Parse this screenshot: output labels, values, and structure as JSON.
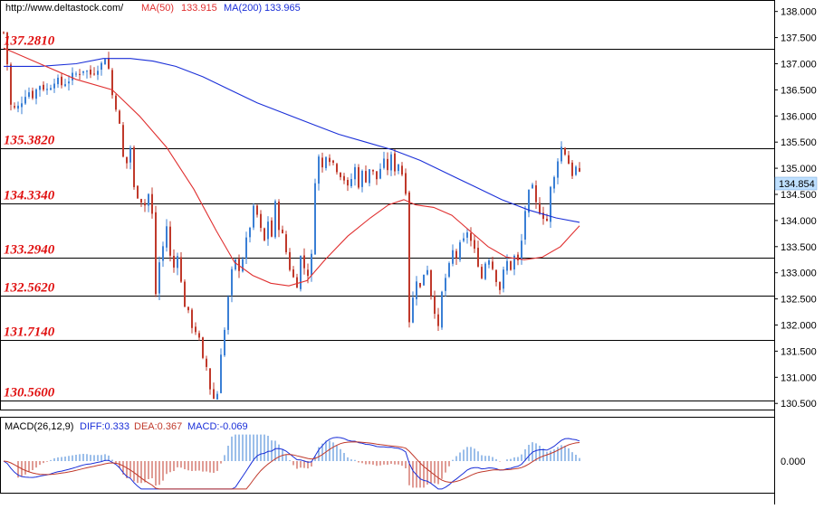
{
  "header": {
    "url": "http://www.deltastock.com/",
    "ma50_label": "MA(50)",
    "ma50_value": "133.915",
    "ma200_label": "MA(200)",
    "ma200_value": "133.965"
  },
  "macd_header": {
    "name": "MACD(26,12,9)",
    "diff_label": "DIFF:0.333",
    "dea_label": "DEA:0.367",
    "macd_label": "MACD:-0.069"
  },
  "colors": {
    "up": "#3a7fd5",
    "down": "#c0392b",
    "ma50": "#e03030",
    "ma200": "#1a2fd8",
    "level_label": "#e01010",
    "price_tag": "#bfe0ff"
  },
  "chart_data": {
    "type": "candlestick",
    "price_axis": {
      "ylim": [
        130.4,
        138.15
      ],
      "ticks": [
        "138.000",
        "137.500",
        "137.000",
        "136.500",
        "136.000",
        "135.500",
        "135.000",
        "134.500",
        "134.000",
        "133.500",
        "133.000",
        "132.500",
        "132.000",
        "131.500",
        "131.000",
        "130.500"
      ]
    },
    "last_price": "134.854",
    "levels": [
      {
        "value": 137.281,
        "label": "137.2810"
      },
      {
        "value": 135.382,
        "label": "135.3820"
      },
      {
        "value": 134.334,
        "label": "134.3340"
      },
      {
        "value": 133.294,
        "label": "133.2940"
      },
      {
        "value": 132.562,
        "label": "132.5620"
      },
      {
        "value": 131.714,
        "label": "131.7140"
      },
      {
        "value": 130.56,
        "label": "130.5600"
      }
    ],
    "close_path": [
      [
        0,
        137.6
      ],
      [
        4,
        137.0
      ],
      [
        8,
        136.2
      ],
      [
        14,
        136.1
      ],
      [
        20,
        136.3
      ],
      [
        26,
        136.5
      ],
      [
        32,
        136.4
      ],
      [
        40,
        136.6
      ],
      [
        48,
        136.5
      ],
      [
        56,
        136.7
      ],
      [
        64,
        136.6
      ],
      [
        72,
        136.7
      ],
      [
        80,
        136.8
      ],
      [
        88,
        136.9
      ],
      [
        96,
        136.8
      ],
      [
        104,
        136.95
      ],
      [
        110,
        137.0
      ],
      [
        114,
        137.3
      ],
      [
        118,
        136.5
      ],
      [
        124,
        136.2
      ],
      [
        128,
        135.8
      ],
      [
        132,
        135.2
      ],
      [
        136,
        135.1
      ],
      [
        140,
        135.4
      ],
      [
        144,
        134.6
      ],
      [
        148,
        134.5
      ],
      [
        152,
        134.4
      ],
      [
        156,
        134.3
      ],
      [
        160,
        134.5
      ],
      [
        164,
        134.1
      ],
      [
        168,
        132.6
      ],
      [
        172,
        133.2
      ],
      [
        176,
        133.5
      ],
      [
        180,
        133.9
      ],
      [
        184,
        133.3
      ],
      [
        188,
        133.1
      ],
      [
        192,
        133.4
      ],
      [
        196,
        132.8
      ],
      [
        200,
        132.4
      ],
      [
        204,
        132.2
      ],
      [
        208,
        132.0
      ],
      [
        212,
        131.9
      ],
      [
        216,
        131.7
      ],
      [
        220,
        131.3
      ],
      [
        224,
        131.2
      ],
      [
        228,
        130.8
      ],
      [
        232,
        130.6
      ],
      [
        236,
        130.7
      ],
      [
        240,
        131.5
      ],
      [
        244,
        131.9
      ],
      [
        248,
        132.5
      ],
      [
        252,
        133.0
      ],
      [
        256,
        133.2
      ],
      [
        260,
        133.1
      ],
      [
        264,
        133.3
      ],
      [
        268,
        133.6
      ],
      [
        272,
        133.9
      ],
      [
        276,
        134.2
      ],
      [
        280,
        134.1
      ],
      [
        284,
        133.8
      ],
      [
        288,
        133.6
      ],
      [
        292,
        134.0
      ],
      [
        296,
        133.7
      ],
      [
        300,
        134.3
      ],
      [
        304,
        133.9
      ],
      [
        308,
        133.7
      ],
      [
        312,
        133.4
      ],
      [
        316,
        133.1
      ],
      [
        320,
        132.9
      ],
      [
        324,
        132.8
      ],
      [
        328,
        133.3
      ],
      [
        332,
        133.1
      ],
      [
        336,
        133.0
      ],
      [
        340,
        133.3
      ],
      [
        344,
        134.8
      ],
      [
        348,
        135.2
      ],
      [
        352,
        135.0
      ],
      [
        356,
        135.3
      ],
      [
        360,
        135.2
      ],
      [
        364,
        135.1
      ],
      [
        368,
        135.0
      ],
      [
        372,
        134.9
      ],
      [
        376,
        134.8
      ],
      [
        380,
        134.6
      ],
      [
        384,
        134.8
      ],
      [
        388,
        135.0
      ],
      [
        392,
        134.7
      ],
      [
        396,
        134.9
      ],
      [
        400,
        134.8
      ],
      [
        404,
        135.0
      ],
      [
        408,
        134.9
      ],
      [
        412,
        134.8
      ],
      [
        416,
        135.0
      ],
      [
        420,
        135.1
      ],
      [
        424,
        135.0
      ],
      [
        428,
        135.2
      ],
      [
        432,
        135.0
      ],
      [
        436,
        135.1
      ],
      [
        440,
        134.9
      ],
      [
        444,
        134.6
      ],
      [
        448,
        132.1
      ],
      [
        452,
        132.5
      ],
      [
        456,
        132.9
      ],
      [
        460,
        132.7
      ],
      [
        464,
        133.0
      ],
      [
        468,
        133.1
      ],
      [
        472,
        132.6
      ],
      [
        476,
        132.3
      ],
      [
        480,
        131.9
      ],
      [
        484,
        132.6
      ],
      [
        488,
        132.9
      ],
      [
        492,
        133.1
      ],
      [
        496,
        133.4
      ],
      [
        500,
        133.3
      ],
      [
        504,
        133.5
      ],
      [
        508,
        133.6
      ],
      [
        512,
        133.8
      ],
      [
        516,
        133.6
      ],
      [
        520,
        133.4
      ],
      [
        524,
        133.2
      ],
      [
        528,
        132.9
      ],
      [
        532,
        133.2
      ],
      [
        536,
        133.3
      ],
      [
        540,
        133.1
      ],
      [
        544,
        132.9
      ],
      [
        548,
        132.7
      ],
      [
        552,
        133.0
      ],
      [
        556,
        133.2
      ],
      [
        560,
        133.1
      ],
      [
        564,
        133.3
      ],
      [
        568,
        133.2
      ],
      [
        572,
        133.6
      ],
      [
        576,
        134.2
      ],
      [
        580,
        134.5
      ],
      [
        584,
        134.6
      ],
      [
        588,
        134.3
      ],
      [
        592,
        134.2
      ],
      [
        596,
        134.1
      ],
      [
        600,
        134.0
      ],
      [
        604,
        134.6
      ],
      [
        608,
        134.8
      ],
      [
        612,
        135.2
      ],
      [
        616,
        135.4
      ],
      [
        620,
        135.3
      ],
      [
        624,
        135.1
      ],
      [
        628,
        134.9
      ],
      [
        632,
        135.0
      ],
      [
        636,
        134.85
      ]
    ],
    "ma50": [
      [
        0,
        137.3
      ],
      [
        40,
        137.0
      ],
      [
        80,
        136.7
      ],
      [
        120,
        136.5
      ],
      [
        150,
        136.0
      ],
      [
        180,
        135.4
      ],
      [
        210,
        134.6
      ],
      [
        235,
        133.8
      ],
      [
        255,
        133.2
      ],
      [
        275,
        132.95
      ],
      [
        295,
        132.8
      ],
      [
        315,
        132.75
      ],
      [
        335,
        132.85
      ],
      [
        355,
        133.25
      ],
      [
        380,
        133.7
      ],
      [
        405,
        134.05
      ],
      [
        425,
        134.3
      ],
      [
        442,
        134.4
      ],
      [
        455,
        134.3
      ],
      [
        475,
        134.25
      ],
      [
        495,
        134.1
      ],
      [
        515,
        133.8
      ],
      [
        535,
        133.5
      ],
      [
        555,
        133.3
      ],
      [
        575,
        133.25
      ],
      [
        595,
        133.3
      ],
      [
        615,
        133.5
      ],
      [
        636,
        133.9
      ]
    ],
    "ma200": [
      [
        0,
        136.95
      ],
      [
        40,
        136.95
      ],
      [
        80,
        137.0
      ],
      [
        110,
        137.1
      ],
      [
        140,
        137.1
      ],
      [
        165,
        137.05
      ],
      [
        190,
        136.95
      ],
      [
        220,
        136.75
      ],
      [
        250,
        136.5
      ],
      [
        280,
        136.25
      ],
      [
        310,
        136.05
      ],
      [
        340,
        135.85
      ],
      [
        370,
        135.65
      ],
      [
        400,
        135.5
      ],
      [
        430,
        135.35
      ],
      [
        460,
        135.15
      ],
      [
        490,
        134.9
      ],
      [
        520,
        134.65
      ],
      [
        550,
        134.4
      ],
      [
        580,
        134.2
      ],
      [
        610,
        134.05
      ],
      [
        636,
        133.965
      ]
    ],
    "macd": {
      "ylim": [
        -0.6,
        0.6
      ],
      "tick": "0.000",
      "tick_value": 0
    },
    "x_range": [
      0,
      636
    ]
  }
}
